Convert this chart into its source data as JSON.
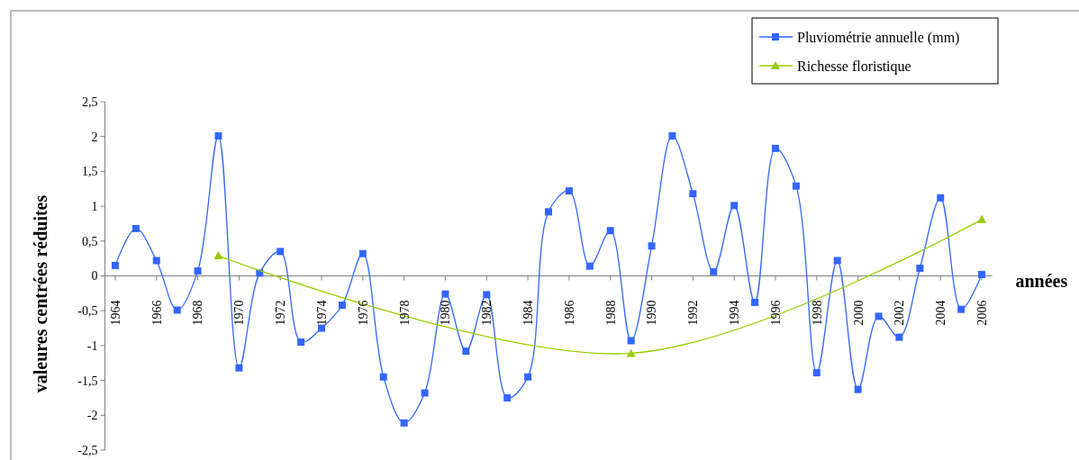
{
  "chart_data": {
    "type": "line",
    "xlabel": "années",
    "ylabel": "valeures centrées réduites",
    "x": [
      1964,
      1965,
      1966,
      1967,
      1968,
      1969,
      1970,
      1971,
      1972,
      1973,
      1974,
      1975,
      1976,
      1977,
      1978,
      1979,
      1980,
      1981,
      1982,
      1983,
      1984,
      1985,
      1986,
      1987,
      1988,
      1989,
      1990,
      1991,
      1992,
      1993,
      1994,
      1995,
      1996,
      1997,
      1998,
      1999,
      2000,
      2001,
      2002,
      2003,
      2004,
      2005,
      2006
    ],
    "series": [
      {
        "name": "Pluviométrie annuelle (mm)",
        "color": "#3366ff",
        "marker": "square",
        "values": [
          0.15,
          0.68,
          0.22,
          -0.49,
          0.07,
          2.01,
          -1.32,
          0.04,
          0.35,
          -0.95,
          -0.75,
          -0.42,
          0.32,
          -1.45,
          -2.11,
          -1.68,
          -0.26,
          -1.08,
          -0.27,
          -1.75,
          -1.45,
          0.92,
          1.22,
          0.14,
          0.65,
          -0.93,
          0.43,
          2.01,
          1.18,
          0.06,
          1.01,
          -0.38,
          1.83,
          1.29,
          -1.39,
          0.22,
          -1.63,
          -0.58,
          -0.88,
          0.11,
          1.12,
          -0.48,
          0.02
        ]
      },
      {
        "name": "Richesse floristique",
        "color": "#99cc00",
        "marker": "triangle",
        "x": [
          1969,
          1989,
          2006
        ],
        "values": [
          0.29,
          -1.11,
          0.81
        ]
      }
    ],
    "xlim": [
      1963.5,
      2006.5
    ],
    "xticks": [
      1964,
      1966,
      1968,
      1970,
      1972,
      1974,
      1976,
      1978,
      1980,
      1982,
      1984,
      1986,
      1988,
      1990,
      1992,
      1994,
      1996,
      1998,
      2000,
      2002,
      2004,
      2006
    ],
    "ylim": [
      -2.5,
      2.5
    ],
    "yticks": [
      {
        "value": -2.5,
        "label": "-2,5"
      },
      -2,
      {
        "value": -1.5,
        "label": "-1,5"
      },
      -1,
      {
        "value": -0.5,
        "label": "-0,5"
      },
      0,
      {
        "value": 0.5,
        "label": "0,5"
      },
      1,
      {
        "value": 1.5,
        "label": "1,5"
      },
      2,
      {
        "value": 2.5,
        "label": "2,5"
      }
    ],
    "grid": false,
    "legend": "top right"
  }
}
